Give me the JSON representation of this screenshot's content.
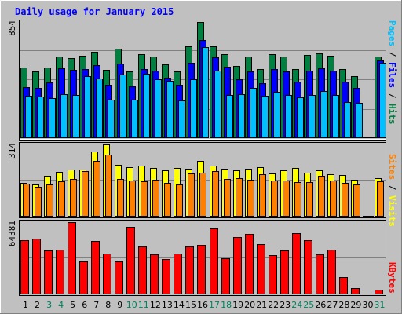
{
  "chart_data": {
    "type": "bar",
    "title": "Daily usage for January 2015",
    "categories": [
      "1",
      "2",
      "3",
      "4",
      "5",
      "6",
      "7",
      "8",
      "9",
      "10",
      "11",
      "12",
      "13",
      "14",
      "15",
      "16",
      "17",
      "18",
      "19",
      "20",
      "21",
      "22",
      "23",
      "24",
      "25",
      "26",
      "27",
      "28",
      "29",
      "30",
      "31"
    ],
    "weekend_days": [
      "3",
      "4",
      "10",
      "11",
      "17",
      "18",
      "24",
      "25",
      "31"
    ],
    "panels": [
      {
        "id": "hits",
        "max_label": "854",
        "ylim": [
          0,
          854
        ],
        "legend": [
          {
            "text": "Pages",
            "color": "#00c0ff"
          },
          {
            "text": " / ",
            "color": "#000000"
          },
          {
            "text": "Files",
            "color": "#0000ff"
          },
          {
            "text": " / ",
            "color": "#000000"
          },
          {
            "text": "Hits",
            "color": "#008040"
          }
        ],
        "series": [
          {
            "name": "Hits",
            "color": "#008040",
            "values": [
              518,
              488,
              518,
              599,
              590,
              604,
              634,
              504,
              660,
              493,
              615,
              600,
              545,
              493,
              673,
              854,
              675,
              618,
              533,
              600,
              508,
              617,
              600,
              508,
              610,
              623,
              606,
              508,
              453,
              0,
              601
            ]
          },
          {
            "name": "Files",
            "color": "#0000ff",
            "values": [
              376,
              370,
              409,
              513,
              503,
              509,
              536,
              395,
              550,
              380,
              507,
              494,
              446,
              395,
              552,
              723,
              594,
              524,
              433,
              493,
              403,
              508,
              493,
              417,
              495,
              514,
              499,
              416,
              372,
              0,
              574
            ]
          },
          {
            "name": "Pages",
            "color": "#00c0ff",
            "values": [
              310,
              306,
              293,
              325,
              317,
              455,
              439,
              280,
              466,
              285,
              475,
              432,
              422,
              276,
              432,
              672,
              496,
              319,
              324,
              372,
              310,
              339,
              316,
              300,
              317,
              348,
              319,
              265,
              262,
              0,
              555
            ]
          }
        ]
      },
      {
        "id": "visits",
        "max_label": "314",
        "ylim": [
          0,
          314
        ],
        "legend": [
          {
            "text": "Sites",
            "color": "#ff8000"
          },
          {
            "text": " / ",
            "color": "#000000"
          },
          {
            "text": "Visits",
            "color": "#ffff00"
          }
        ],
        "series": [
          {
            "name": "Visits",
            "color": "#ffff00",
            "values": [
              148,
              139,
              178,
              193,
              204,
              205,
              284,
              314,
              226,
              215,
              221,
              211,
              200,
              210,
              209,
              241,
              222,
              207,
              202,
              209,
              216,
              189,
              203,
              211,
              191,
              203,
              184,
              181,
              160,
              0,
              166
            ]
          },
          {
            "name": "Sites",
            "color": "#ff8000",
            "values": [
              143,
              131,
              140,
              153,
              163,
              199,
              244,
              268,
              165,
              158,
              153,
              160,
              148,
              140,
              188,
              190,
              198,
              165,
              166,
              161,
              186,
              156,
              157,
              149,
              150,
              178,
              157,
              148,
              140,
              0,
              153
            ]
          }
        ]
      },
      {
        "id": "kbytes",
        "max_label": "64381",
        "ylim": [
          0,
          64381
        ],
        "legend": [
          {
            "text": "KBytes",
            "color": "#ff0000"
          }
        ],
        "series": [
          {
            "name": "KBytes",
            "color": "#ff0000",
            "values": [
              48281,
              49815,
              38911,
              39690,
              64381,
              29584,
              47472,
              36468,
              29593,
              60476,
              42802,
              36002,
              31353,
              36440,
              42814,
              44362,
              58957,
              32364,
              51363,
              53961,
              44450,
              34932,
              38975,
              54385,
              48049,
              35847,
              39623,
              15597,
              5845,
              0,
              4285
            ]
          }
        ]
      }
    ]
  }
}
